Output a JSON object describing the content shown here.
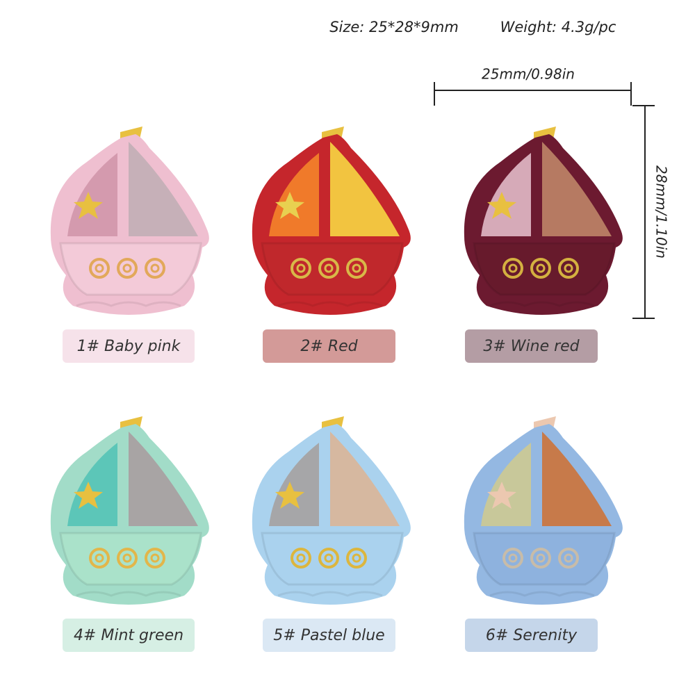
{
  "header": {
    "size": "Size: 25*28*9mm",
    "weight": "Weight: 4.3g/pc"
  },
  "dimensions": {
    "width": "25mm/0.98in",
    "height": "28mm/1.10in"
  },
  "variants": [
    {
      "label": "1# Baby pink"
    },
    {
      "label": "2# Red"
    },
    {
      "label": "3# Wine red"
    },
    {
      "label": "4# Mint green"
    },
    {
      "label": "5# Pastel blue"
    },
    {
      "label": "6# Serenity"
    }
  ]
}
